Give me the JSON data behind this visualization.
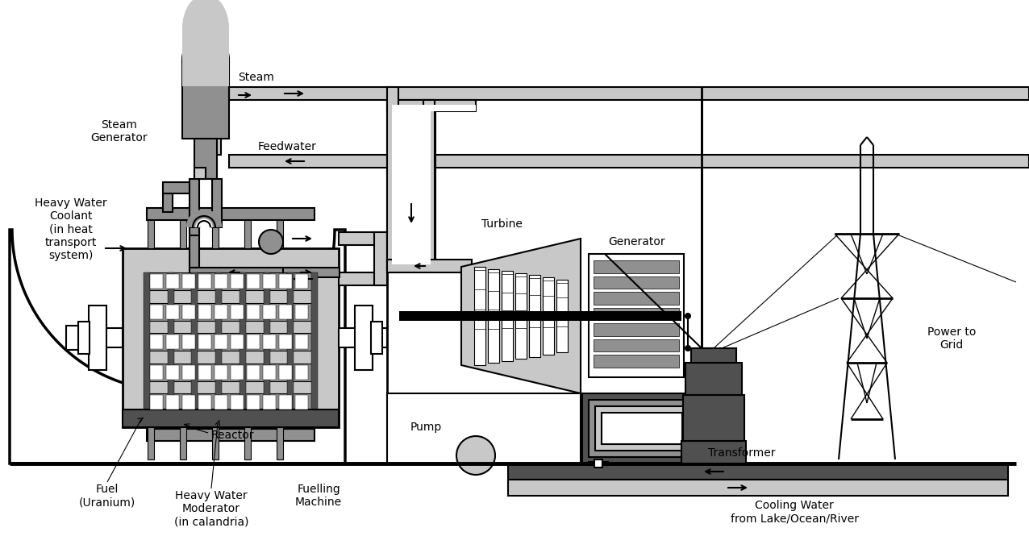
{
  "bg_color": "#ffffff",
  "black": "#000000",
  "gray_light": "#c8c8c8",
  "gray_medium": "#909090",
  "gray_dark": "#505050",
  "white": "#ffffff",
  "labels": {
    "steam": "Steam",
    "steam_generator": "Steam\nGenerator",
    "heavy_water_coolant": "Heavy Water\nCoolant\n(in heat\ntransport\nsystem)",
    "feedwater": "Feedwater",
    "reactor": "Reactor",
    "fuel": "Fuel\n(Uranium)",
    "heavy_water_moderator": "Heavy Water\nModerator\n(in calandria)",
    "fuelling_machine": "Fuelling\nMachine",
    "turbine": "Turbine",
    "generator": "Generator",
    "pump": "Pump",
    "transformer": "Transformer",
    "power_to_grid": "Power to\nGrid",
    "cooling_water": "Cooling Water\nfrom Lake/Ocean/River"
  }
}
